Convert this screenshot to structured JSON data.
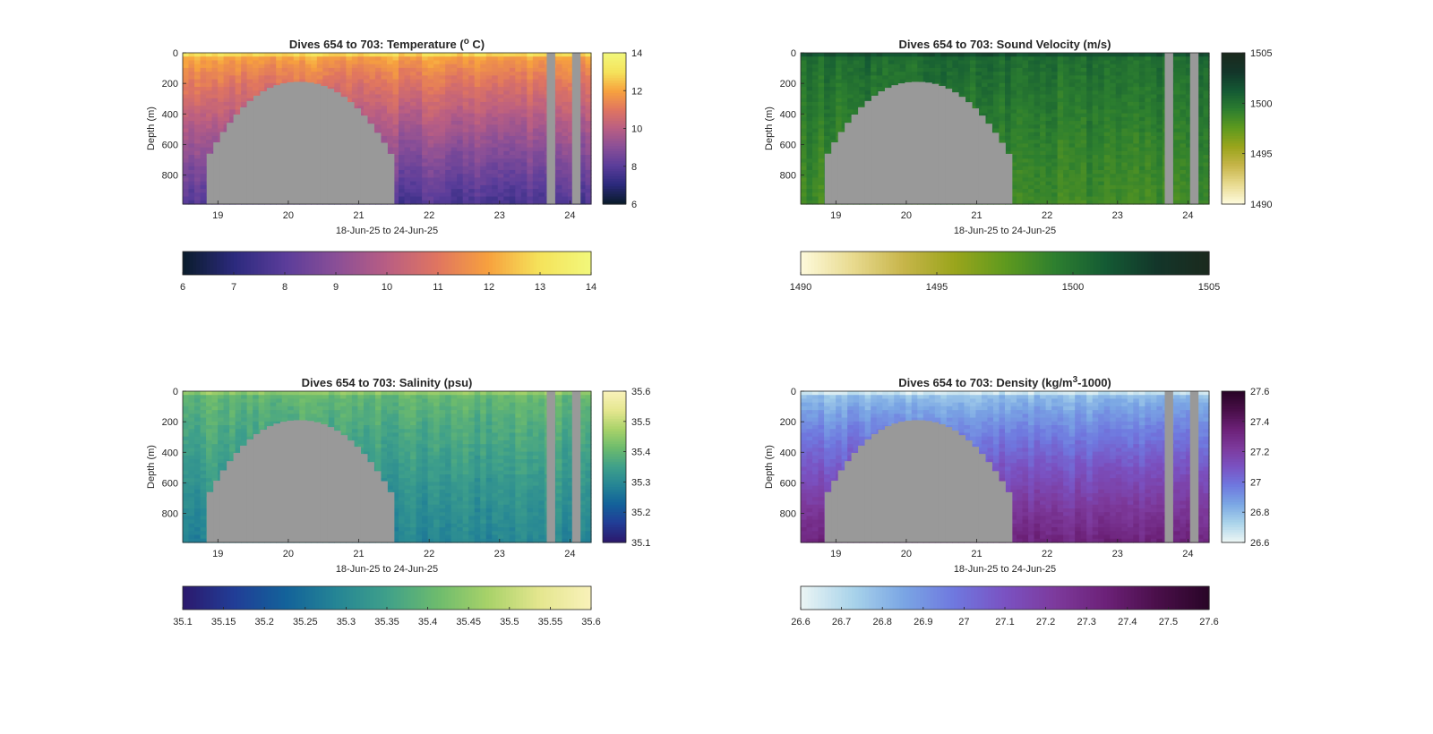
{
  "chart_data": [
    {
      "type": "heatmap",
      "title": "Dives 654 to 703: Temperature (",
      "title_sup": "o",
      "title_after": " C)",
      "ylabel": "Depth (m)",
      "xlabel": "18-Jun-25 to 24-Jun-25",
      "x_ticks": [
        "19",
        "20",
        "21",
        "22",
        "23",
        "24"
      ],
      "y_ticks": [
        "0",
        "200",
        "400",
        "600",
        "800"
      ],
      "xlim": [
        18.5,
        24.3
      ],
      "ylim": [
        0,
        990
      ],
      "colormap": [
        "#0b1c2e",
        "#2c2a7e",
        "#5b3d9a",
        "#8a4f97",
        "#b95e83",
        "#e07560",
        "#f7a13e",
        "#f5e25a",
        "#f2f77a"
      ],
      "vertical_colorbar": {
        "ticks": [
          "6",
          "8",
          "10",
          "12",
          "14"
        ]
      },
      "horizontal_colorbar": {
        "ticks": [
          "6",
          "7",
          "8",
          "9",
          "10",
          "11",
          "12",
          "13",
          "14"
        ]
      },
      "surface_value": 0.78,
      "deep_value": 0.22,
      "range": [
        6,
        14
      ]
    },
    {
      "type": "heatmap",
      "title": "Dives 654 to 703: Sound Velocity (m/s)",
      "title_sup": "",
      "title_after": "",
      "ylabel": "Depth (m)",
      "xlabel": "18-Jun-25 to 24-Jun-25",
      "x_ticks": [
        "19",
        "20",
        "21",
        "22",
        "23",
        "24"
      ],
      "y_ticks": [
        "0",
        "200",
        "400",
        "600",
        "800"
      ],
      "xlim": [
        18.5,
        24.3
      ],
      "ylim": [
        0,
        990
      ],
      "colormap": [
        "#fdf9d9",
        "#e8da8f",
        "#c7b54a",
        "#9aa51c",
        "#5f9a1e",
        "#2d7f2f",
        "#145a34",
        "#13362a",
        "#1b2a1e"
      ],
      "vertical_colorbar": {
        "ticks": [
          "1490",
          "1495",
          "1500",
          "1505"
        ]
      },
      "horizontal_colorbar": {
        "ticks": [
          "1490",
          "1495",
          "1500",
          "1505"
        ]
      },
      "surface_value": 0.7,
      "deep_value": 0.58,
      "range": [
        1490,
        1505
      ]
    },
    {
      "type": "heatmap",
      "title": "Dives 654 to 703: Salinity (psu)",
      "title_sup": "",
      "title_after": "",
      "ylabel": "Depth (m)",
      "xlabel": "18-Jun-25 to 24-Jun-25",
      "x_ticks": [
        "19",
        "20",
        "21",
        "22",
        "23",
        "24"
      ],
      "y_ticks": [
        "0",
        "200",
        "400",
        "600",
        "800"
      ],
      "xlim": [
        18.5,
        24.3
      ],
      "ylim": [
        0,
        990
      ],
      "colormap": [
        "#2b1a6e",
        "#213e97",
        "#13629a",
        "#258595",
        "#3fa08a",
        "#6dbb6d",
        "#a8d269",
        "#e4e68e",
        "#f8f1b8"
      ],
      "vertical_colorbar": {
        "ticks": [
          "35.1",
          "35.2",
          "35.3",
          "35.4",
          "35.5",
          "35.6"
        ]
      },
      "horizontal_colorbar": {
        "ticks": [
          "35.1",
          "35.15",
          "35.2",
          "35.25",
          "35.3",
          "35.35",
          "35.4",
          "35.45",
          "35.5",
          "35.55",
          "35.6"
        ]
      },
      "surface_value": 0.62,
      "deep_value": 0.38,
      "range": [
        35.1,
        35.6
      ]
    },
    {
      "type": "heatmap",
      "title": "Dives 654 to 703: Density (kg/m",
      "title_sup": "3",
      "title_after": "-1000)",
      "ylabel": "Depth (m)",
      "xlabel": "18-Jun-25 to 24-Jun-25",
      "x_ticks": [
        "19",
        "20",
        "21",
        "22",
        "23",
        "24"
      ],
      "y_ticks": [
        "0",
        "200",
        "400",
        "600",
        "800"
      ],
      "xlim": [
        18.5,
        24.3
      ],
      "ylim": [
        0,
        990
      ],
      "colormap": [
        "#e9f4f4",
        "#a9d3ea",
        "#7aa6e4",
        "#6f78df",
        "#7a52c2",
        "#7d3a9c",
        "#6c2178",
        "#4a0f4a",
        "#2a0528"
      ],
      "vertical_colorbar": {
        "ticks": [
          "26.6",
          "26.8",
          "27",
          "27.2",
          "27.4",
          "27.6"
        ]
      },
      "horizontal_colorbar": {
        "ticks": [
          "26.6",
          "26.7",
          "26.8",
          "26.9",
          "27",
          "27.1",
          "27.2",
          "27.3",
          "27.4",
          "27.5",
          "27.6"
        ]
      },
      "surface_value": 0.15,
      "deep_value": 0.72,
      "range": [
        26.6,
        27.6
      ]
    }
  ],
  "colors": {
    "nodata": "#999999",
    "axis": "#262626"
  }
}
